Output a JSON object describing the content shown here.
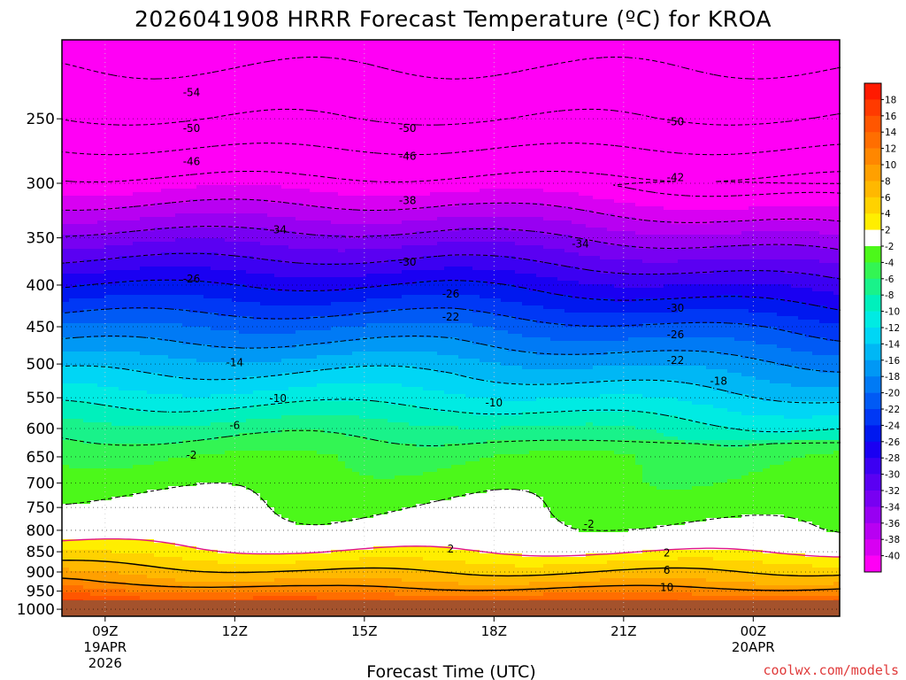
{
  "chart_data": {
    "type": "heatmap",
    "title": "2026041908 HRRR Forecast Temperature (ºC) for KROA",
    "xlabel": "Forecast Time (UTC)",
    "ylabel": "",
    "credit": "coolwx.com/models",
    "x_ticks": [
      {
        "hour": 0,
        "label": "09Z",
        "sub1": "19APR",
        "sub2": "2026"
      },
      {
        "hour": 3,
        "label": "12Z",
        "sub1": "",
        "sub2": ""
      },
      {
        "hour": 6,
        "label": "15Z",
        "sub1": "",
        "sub2": ""
      },
      {
        "hour": 9,
        "label": "18Z",
        "sub1": "",
        "sub2": ""
      },
      {
        "hour": 12,
        "label": "21Z",
        "sub1": "",
        "sub2": ""
      },
      {
        "hour": 15,
        "label": "00Z",
        "sub1": "20APR",
        "sub2": ""
      }
    ],
    "xlim": [
      -1,
      17
    ],
    "y_axis": {
      "scale": "log",
      "inverted": true,
      "ylim": [
        200,
        1020
      ],
      "ticks": [
        250,
        300,
        350,
        400,
        450,
        500,
        550,
        600,
        650,
        700,
        750,
        800,
        850,
        900,
        950,
        1000
      ]
    },
    "grid": true,
    "surface_pressure_hpa": 975,
    "levels": [
      {
        "p": 975,
        "t": 14
      },
      {
        "p": 950,
        "t": 11
      },
      {
        "p": 925,
        "t": 8
      },
      {
        "p": 900,
        "t": 6
      },
      {
        "p": 850,
        "t": 2
      },
      {
        "p": 800,
        "t": -1
      },
      {
        "p": 750,
        "t": -2
      },
      {
        "p": 700,
        "t": -3
      },
      {
        "p": 650,
        "t": -4
      },
      {
        "p": 600,
        "t": -7
      },
      {
        "p": 550,
        "t": -11
      },
      {
        "p": 500,
        "t": -15
      },
      {
        "p": 450,
        "t": -20
      },
      {
        "p": 400,
        "t": -26
      },
      {
        "p": 350,
        "t": -33
      },
      {
        "p": 300,
        "t": -41
      },
      {
        "p": 250,
        "t": -50
      },
      {
        "p": 200,
        "t": -56
      }
    ],
    "colorbar": {
      "labels": [
        "18",
        "16",
        "14",
        "12",
        "10",
        "8",
        "6",
        "4",
        "2",
        "-2",
        "-4",
        "-6",
        "-8",
        "-10",
        "-12",
        "-14",
        "-16",
        "-18",
        "-20",
        "-22",
        "-24",
        "-26",
        "-28",
        "-30",
        "-32",
        "-34",
        "-36",
        "-38",
        "-40"
      ],
      "bins": [
        {
          "lo": 18,
          "hi": 99,
          "color": "#ff1a00"
        },
        {
          "lo": 16,
          "hi": 18,
          "color": "#ff3a00"
        },
        {
          "lo": 14,
          "hi": 16,
          "color": "#ff5600"
        },
        {
          "lo": 12,
          "hi": 14,
          "color": "#ff6e00"
        },
        {
          "lo": 10,
          "hi": 12,
          "color": "#ff8700"
        },
        {
          "lo": 8,
          "hi": 10,
          "color": "#ffa000"
        },
        {
          "lo": 6,
          "hi": 8,
          "color": "#ffb800"
        },
        {
          "lo": 4,
          "hi": 6,
          "color": "#ffd200"
        },
        {
          "lo": 2,
          "hi": 4,
          "color": "#ffee00"
        },
        {
          "lo": -2,
          "hi": 2,
          "color": "#ffffff"
        },
        {
          "lo": -4,
          "hi": -2,
          "color": "#4cf81a"
        },
        {
          "lo": -6,
          "hi": -4,
          "color": "#33f553"
        },
        {
          "lo": -8,
          "hi": -6,
          "color": "#19f28a"
        },
        {
          "lo": -10,
          "hi": -8,
          "color": "#00f0bc"
        },
        {
          "lo": -12,
          "hi": -10,
          "color": "#00ebe3"
        },
        {
          "lo": -14,
          "hi": -12,
          "color": "#00d6f5"
        },
        {
          "lo": -16,
          "hi": -14,
          "color": "#00b7f5"
        },
        {
          "lo": -18,
          "hi": -16,
          "color": "#0098f5"
        },
        {
          "lo": -20,
          "hi": -18,
          "color": "#007af5"
        },
        {
          "lo": -22,
          "hi": -20,
          "color": "#005af5"
        },
        {
          "lo": -24,
          "hi": -22,
          "color": "#0038f5"
        },
        {
          "lo": -26,
          "hi": -24,
          "color": "#0018ef"
        },
        {
          "lo": -28,
          "hi": -26,
          "color": "#1a00f2"
        },
        {
          "lo": -30,
          "hi": -28,
          "color": "#3c00f2"
        },
        {
          "lo": -32,
          "hi": -30,
          "color": "#5a00f2"
        },
        {
          "lo": -34,
          "hi": -32,
          "color": "#7800f2"
        },
        {
          "lo": -36,
          "hi": -34,
          "color": "#9800f2"
        },
        {
          "lo": -38,
          "hi": -36,
          "color": "#b800f2"
        },
        {
          "lo": -40,
          "hi": -38,
          "color": "#d800f2"
        },
        {
          "lo": -99,
          "hi": -40,
          "color": "#ff00f5"
        }
      ]
    },
    "contour_labels": [
      {
        "text": "-54",
        "hour": 2.0,
        "p": 232
      },
      {
        "text": "-50",
        "hour": 2.0,
        "p": 257
      },
      {
        "text": "-50",
        "hour": 7.0,
        "p": 257
      },
      {
        "text": "-50",
        "hour": 13.2,
        "p": 252
      },
      {
        "text": "-46",
        "hour": 2.0,
        "p": 282
      },
      {
        "text": "-46",
        "hour": 7.0,
        "p": 278
      },
      {
        "text": "-42",
        "hour": 13.2,
        "p": 295
      },
      {
        "text": "-38",
        "hour": 7.0,
        "p": 315
      },
      {
        "text": "-34",
        "hour": 4.0,
        "p": 342
      },
      {
        "text": "-34",
        "hour": 11.0,
        "p": 356
      },
      {
        "text": "-30",
        "hour": 7.0,
        "p": 375
      },
      {
        "text": "-30",
        "hour": 13.2,
        "p": 427
      },
      {
        "text": "-26",
        "hour": 2.0,
        "p": 393
      },
      {
        "text": "-26",
        "hour": 8.0,
        "p": 410
      },
      {
        "text": "-26",
        "hour": 13.2,
        "p": 460
      },
      {
        "text": "-22",
        "hour": 8.0,
        "p": 438
      },
      {
        "text": "-22",
        "hour": 13.2,
        "p": 495
      },
      {
        "text": "-18",
        "hour": 14.2,
        "p": 525
      },
      {
        "text": "-14",
        "hour": 3.0,
        "p": 498
      },
      {
        "text": "-10",
        "hour": 4.0,
        "p": 551
      },
      {
        "text": "-10",
        "hour": 9.0,
        "p": 558
      },
      {
        "text": "-6",
        "hour": 3.0,
        "p": 595
      },
      {
        "text": "-2",
        "hour": 2.0,
        "p": 647
      },
      {
        "text": "-2",
        "hour": 11.2,
        "p": 786
      },
      {
        "text": "2",
        "hour": 8.0,
        "p": 843
      },
      {
        "text": "2",
        "hour": 13.0,
        "p": 853
      },
      {
        "text": "6",
        "hour": 13.0,
        "p": 896
      },
      {
        "text": "10",
        "hour": 13.0,
        "p": 940
      }
    ],
    "contour_levels": [
      -54,
      -50,
      -46,
      -42,
      -38,
      -34,
      -30,
      -26,
      -22,
      -18,
      -14,
      -10,
      -6,
      -2,
      2,
      6,
      10
    ],
    "contour_colors": {
      "negative": "#000000",
      "zero": "#e0168a",
      "positive": "#000000"
    },
    "ground_color": "#a4522c"
  }
}
